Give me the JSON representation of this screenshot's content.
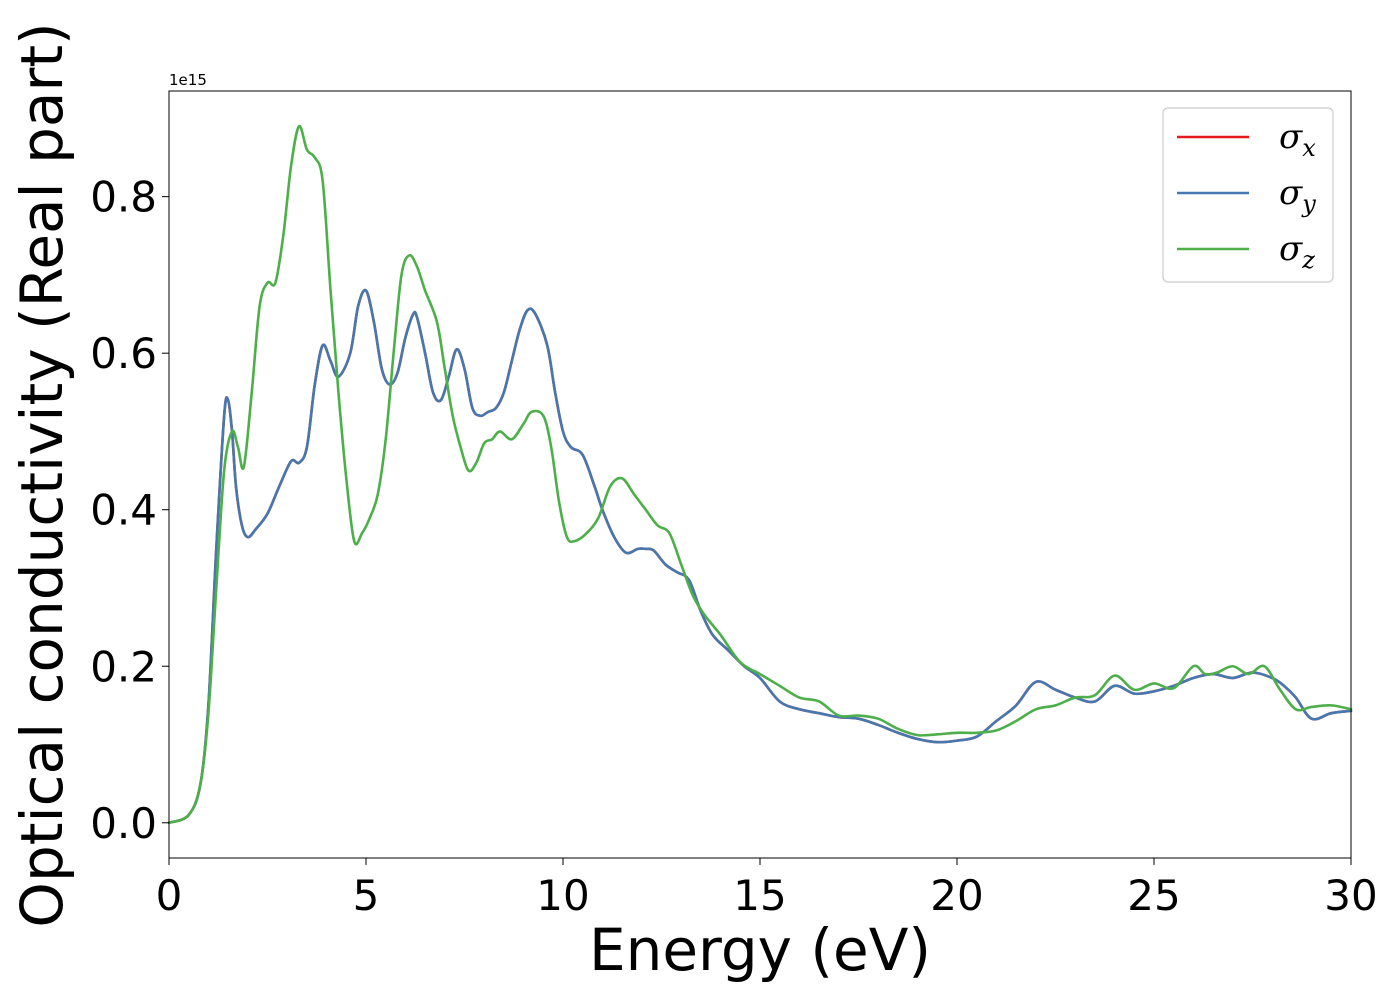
{
  "chart_data": {
    "type": "line",
    "title": "",
    "xlabel": "Energy (eV)",
    "ylabel": "Optical conductivity (Real part)",
    "y_offset_label": "1e15",
    "xlim": [
      0,
      30
    ],
    "ylim": [
      -0.045,
      0.935
    ],
    "xticks": [
      0,
      5,
      10,
      15,
      20,
      25,
      30
    ],
    "xtick_labels": [
      "0",
      "5",
      "10",
      "15",
      "20",
      "25",
      "30"
    ],
    "yticks": [
      0.0,
      0.2,
      0.4,
      0.6,
      0.8
    ],
    "ytick_labels": [
      "0.0",
      "0.2",
      "0.4",
      "0.6",
      "0.8"
    ],
    "grid": false,
    "legend_position": "top-right",
    "series": [
      {
        "name": "σx",
        "legend_symbol": "σ",
        "legend_sub": "x",
        "color": "#e41a1c",
        "x": [
          0,
          0.5,
          0.8,
          1.0,
          1.2,
          1.4,
          1.5,
          1.6,
          1.7,
          1.85,
          2.0,
          2.2,
          2.5,
          2.8,
          3.1,
          3.3,
          3.5,
          3.7,
          3.9,
          4.1,
          4.3,
          4.6,
          4.8,
          5.0,
          5.2,
          5.4,
          5.6,
          5.8,
          6.0,
          6.2,
          6.3,
          6.5,
          6.7,
          6.9,
          7.1,
          7.3,
          7.5,
          7.7,
          7.9,
          8.1,
          8.3,
          8.5,
          8.7,
          8.9,
          9.1,
          9.3,
          9.6,
          9.8,
          10.0,
          10.2,
          10.5,
          10.8,
          11.0,
          11.3,
          11.6,
          11.9,
          12.1,
          12.3,
          12.6,
          12.9,
          13.2,
          13.5,
          13.8,
          14.2,
          14.6,
          15.0,
          15.5,
          16.0,
          16.5,
          17.0,
          17.5,
          18.0,
          18.5,
          19.0,
          19.5,
          20.0,
          20.5,
          21.0,
          21.5,
          22.0,
          22.5,
          23.0,
          23.5,
          24.0,
          24.5,
          25.0,
          25.5,
          26.0,
          26.5,
          27.0,
          27.5,
          28.0,
          28.3,
          28.6,
          29.0,
          29.5,
          30.0
        ],
        "y": [
          0.0,
          0.01,
          0.05,
          0.15,
          0.35,
          0.52,
          0.54,
          0.5,
          0.43,
          0.38,
          0.365,
          0.375,
          0.395,
          0.43,
          0.462,
          0.46,
          0.48,
          0.56,
          0.61,
          0.59,
          0.57,
          0.6,
          0.66,
          0.68,
          0.64,
          0.58,
          0.56,
          0.575,
          0.62,
          0.65,
          0.645,
          0.6,
          0.55,
          0.54,
          0.57,
          0.605,
          0.58,
          0.53,
          0.52,
          0.525,
          0.53,
          0.55,
          0.59,
          0.63,
          0.655,
          0.65,
          0.61,
          0.55,
          0.5,
          0.48,
          0.47,
          0.43,
          0.4,
          0.365,
          0.345,
          0.35,
          0.35,
          0.348,
          0.33,
          0.32,
          0.31,
          0.27,
          0.24,
          0.22,
          0.2,
          0.185,
          0.155,
          0.145,
          0.14,
          0.135,
          0.133,
          0.125,
          0.115,
          0.107,
          0.103,
          0.105,
          0.11,
          0.13,
          0.15,
          0.18,
          0.17,
          0.16,
          0.155,
          0.175,
          0.165,
          0.168,
          0.175,
          0.185,
          0.19,
          0.185,
          0.192,
          0.185,
          0.175,
          0.16,
          0.133,
          0.14,
          0.143
        ]
      },
      {
        "name": "σy",
        "legend_symbol": "σ",
        "legend_sub": "y",
        "color": "#4678b0",
        "x": [
          0,
          0.5,
          0.8,
          1.0,
          1.2,
          1.4,
          1.5,
          1.6,
          1.7,
          1.85,
          2.0,
          2.2,
          2.5,
          2.8,
          3.1,
          3.3,
          3.5,
          3.7,
          3.9,
          4.1,
          4.3,
          4.6,
          4.8,
          5.0,
          5.2,
          5.4,
          5.6,
          5.8,
          6.0,
          6.2,
          6.3,
          6.5,
          6.7,
          6.9,
          7.1,
          7.3,
          7.5,
          7.7,
          7.9,
          8.1,
          8.3,
          8.5,
          8.7,
          8.9,
          9.1,
          9.3,
          9.6,
          9.8,
          10.0,
          10.2,
          10.5,
          10.8,
          11.0,
          11.3,
          11.6,
          11.9,
          12.1,
          12.3,
          12.6,
          12.9,
          13.2,
          13.5,
          13.8,
          14.2,
          14.6,
          15.0,
          15.5,
          16.0,
          16.5,
          17.0,
          17.5,
          18.0,
          18.5,
          19.0,
          19.5,
          20.0,
          20.5,
          21.0,
          21.5,
          22.0,
          22.5,
          23.0,
          23.5,
          24.0,
          24.5,
          25.0,
          25.5,
          26.0,
          26.5,
          27.0,
          27.5,
          28.0,
          28.3,
          28.6,
          29.0,
          29.5,
          30.0
        ],
        "y": [
          0.0,
          0.01,
          0.05,
          0.15,
          0.35,
          0.52,
          0.54,
          0.5,
          0.43,
          0.38,
          0.365,
          0.375,
          0.395,
          0.43,
          0.462,
          0.46,
          0.48,
          0.56,
          0.61,
          0.59,
          0.57,
          0.6,
          0.66,
          0.68,
          0.64,
          0.58,
          0.56,
          0.575,
          0.62,
          0.65,
          0.645,
          0.6,
          0.55,
          0.54,
          0.57,
          0.605,
          0.58,
          0.53,
          0.52,
          0.525,
          0.53,
          0.55,
          0.59,
          0.63,
          0.655,
          0.65,
          0.61,
          0.55,
          0.5,
          0.48,
          0.47,
          0.43,
          0.4,
          0.365,
          0.345,
          0.35,
          0.35,
          0.348,
          0.33,
          0.32,
          0.31,
          0.27,
          0.24,
          0.22,
          0.2,
          0.185,
          0.155,
          0.145,
          0.14,
          0.135,
          0.133,
          0.125,
          0.115,
          0.107,
          0.103,
          0.105,
          0.11,
          0.13,
          0.15,
          0.18,
          0.17,
          0.16,
          0.155,
          0.175,
          0.165,
          0.168,
          0.175,
          0.185,
          0.19,
          0.185,
          0.192,
          0.185,
          0.175,
          0.16,
          0.133,
          0.14,
          0.143
        ]
      },
      {
        "name": "σz",
        "legend_symbol": "σ",
        "legend_sub": "z",
        "color": "#4daf4a",
        "x": [
          0,
          0.5,
          0.8,
          1.0,
          1.2,
          1.4,
          1.6,
          1.75,
          1.9,
          2.1,
          2.3,
          2.5,
          2.7,
          2.9,
          3.1,
          3.3,
          3.5,
          3.7,
          3.9,
          4.1,
          4.3,
          4.5,
          4.7,
          4.9,
          5.1,
          5.3,
          5.5,
          5.7,
          5.9,
          6.1,
          6.3,
          6.5,
          6.8,
          7.0,
          7.2,
          7.4,
          7.6,
          7.8,
          8.0,
          8.2,
          8.4,
          8.7,
          9.0,
          9.2,
          9.5,
          9.7,
          9.9,
          10.1,
          10.3,
          10.6,
          10.9,
          11.2,
          11.5,
          11.8,
          12.1,
          12.4,
          12.7,
          13.0,
          13.3,
          13.6,
          14.0,
          14.5,
          15.0,
          15.5,
          16.0,
          16.5,
          17.0,
          17.5,
          18.0,
          18.5,
          19.0,
          19.5,
          20.0,
          20.5,
          21.0,
          21.5,
          22.0,
          22.5,
          23.0,
          23.5,
          24.0,
          24.5,
          25.0,
          25.5,
          26.0,
          26.3,
          26.6,
          27.0,
          27.4,
          27.8,
          28.2,
          28.6,
          29.0,
          29.5,
          30.0
        ],
        "y": [
          0.0,
          0.01,
          0.05,
          0.14,
          0.3,
          0.45,
          0.5,
          0.48,
          0.455,
          0.55,
          0.66,
          0.69,
          0.69,
          0.75,
          0.84,
          0.89,
          0.86,
          0.85,
          0.82,
          0.68,
          0.55,
          0.44,
          0.36,
          0.37,
          0.39,
          0.42,
          0.49,
          0.6,
          0.7,
          0.725,
          0.71,
          0.68,
          0.64,
          0.58,
          0.52,
          0.48,
          0.45,
          0.46,
          0.485,
          0.49,
          0.5,
          0.49,
          0.51,
          0.525,
          0.52,
          0.48,
          0.41,
          0.365,
          0.36,
          0.37,
          0.39,
          0.43,
          0.44,
          0.42,
          0.4,
          0.38,
          0.37,
          0.33,
          0.29,
          0.265,
          0.24,
          0.205,
          0.19,
          0.175,
          0.16,
          0.155,
          0.137,
          0.137,
          0.133,
          0.12,
          0.112,
          0.113,
          0.115,
          0.115,
          0.118,
          0.13,
          0.145,
          0.15,
          0.16,
          0.163,
          0.188,
          0.17,
          0.178,
          0.172,
          0.2,
          0.19,
          0.192,
          0.2,
          0.19,
          0.2,
          0.17,
          0.145,
          0.148,
          0.15,
          0.145
        ]
      }
    ]
  }
}
